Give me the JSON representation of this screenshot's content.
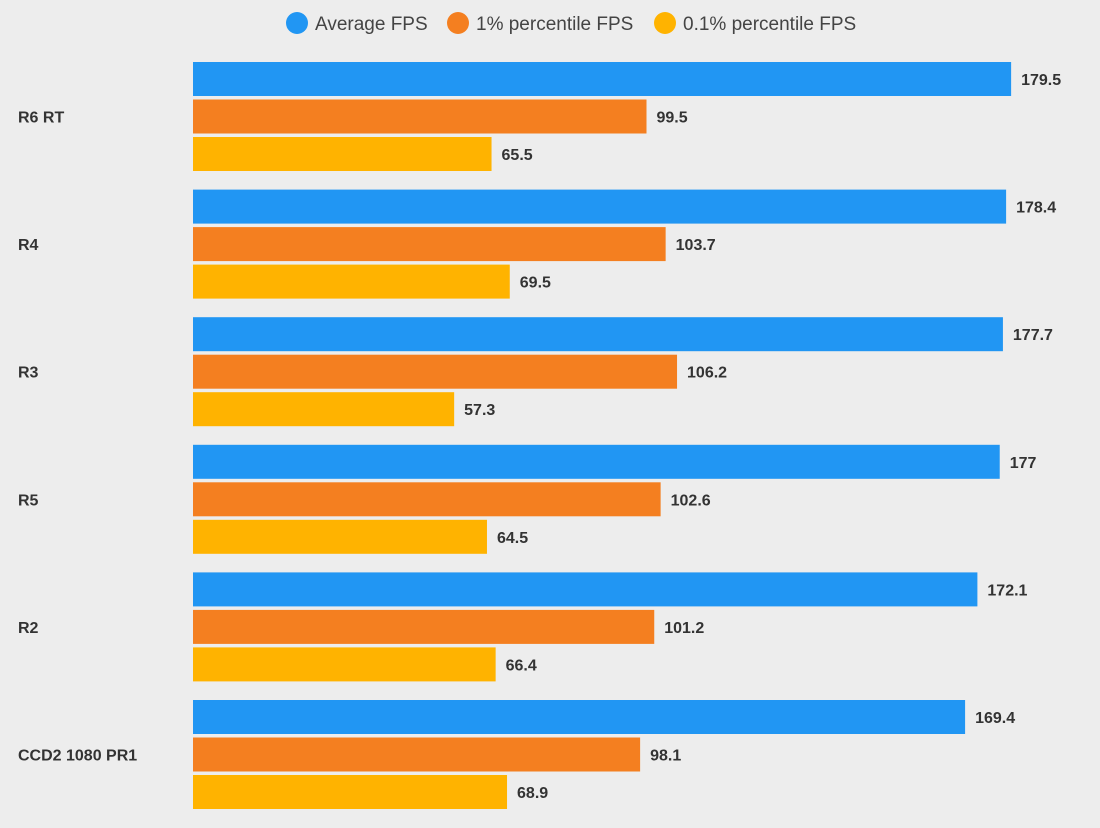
{
  "chart_data": {
    "type": "bar",
    "orientation": "horizontal",
    "title": "",
    "xlabel": "",
    "ylabel": "",
    "xlim": [
      0,
      199
    ],
    "grid": false,
    "legend_position": "top-center",
    "categories": [
      "R6 RT",
      "R4",
      "R3",
      "R5",
      "R2",
      "CCD2 1080 PR1"
    ],
    "series": [
      {
        "name": "Average FPS",
        "color": "#2196f3",
        "values": [
          179.5,
          178.4,
          177.7,
          177,
          172.1,
          169.4
        ]
      },
      {
        "name": "1% percentile FPS",
        "color": "#f47f20",
        "values": [
          99.5,
          103.7,
          106.2,
          102.6,
          101.2,
          98.1
        ]
      },
      {
        "name": "0.1% percentile FPS",
        "color": "#ffb300",
        "values": [
          65.5,
          69.5,
          57.3,
          64.5,
          66.4,
          68.9
        ]
      }
    ]
  }
}
